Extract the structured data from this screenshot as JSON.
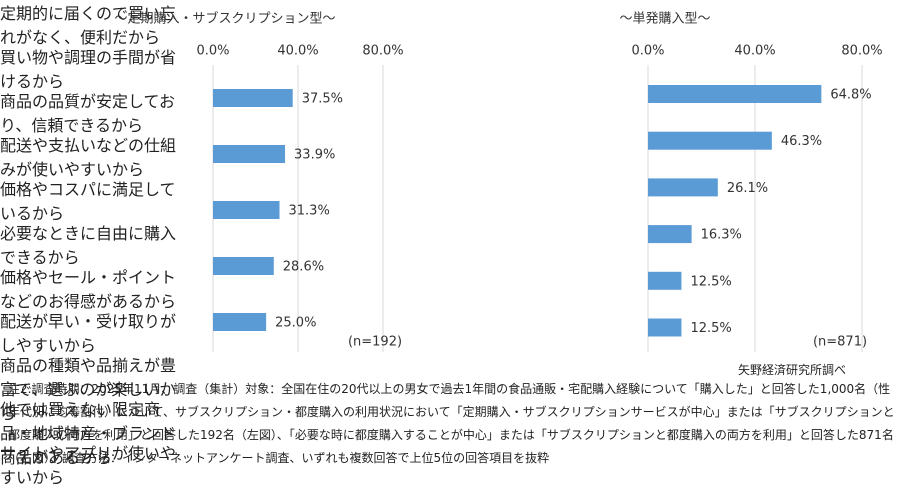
{
  "chart_data": [
    {
      "type": "barh",
      "title": "～定期購入・サブスクリプション型～",
      "categories": [
        "定期的に届くので買い忘れがなく、便利だから",
        "買い物や調理の手間が省けるから",
        "商品の品質が安定しており、信頼できるから",
        "配送や支払いなどの仕組みが使いやすいから",
        "価格やコスパに満足しているから"
      ],
      "values": [
        37.5,
        33.9,
        31.3,
        28.6,
        25.0
      ],
      "value_labels": [
        "37.5%",
        "33.9%",
        "31.3%",
        "28.6%",
        "25.0%"
      ],
      "color": "#5b9bd5",
      "xlim": [
        0,
        80
      ],
      "xticks": [
        {
          "value": 0,
          "label": "0.0%"
        },
        {
          "value": 40,
          "label": "40.0%"
        },
        {
          "value": 80,
          "label": "80.0%"
        }
      ],
      "grid": true,
      "annotation": "(n=192)"
    },
    {
      "type": "barh",
      "title": "～単発購入型～",
      "categories": [
        "必要なときに自由に購入できるから",
        "価格やセール・ポイントなどのお得感があるから",
        "配送が早い・受け取りがしやすいから",
        "商品の種類や品揃えが豊富で、選ぶのが楽しいから",
        "他では買えない限定商品・地域特産・ブランド商品があるから",
        "サイトやアプリが使いやすいから"
      ],
      "values": [
        64.8,
        46.3,
        26.1,
        16.3,
        12.5,
        12.5
      ],
      "value_labels": [
        "64.8%",
        "46.3%",
        "26.1%",
        "16.3%",
        "12.5%",
        "12.5%"
      ],
      "color": "#5b9bd5",
      "xlim": [
        0,
        80
      ],
      "xticks": [
        {
          "value": 0,
          "label": "0.0%"
        },
        {
          "value": 40,
          "label": "40.0%"
        },
        {
          "value": 80,
          "label": "80.0%"
        }
      ],
      "grid": true,
      "annotation": "(n=871)"
    }
  ],
  "source": "矢野経済研究所調べ",
  "note": "注2.調査時期：2025年11月、調査（集計）対象：全国在住の20代以上の男女で過去1年間の食品通販・宅配購入経験について「購入した」と回答した1,000名（性年代別に均等割付）について、サブスクリプション・都度購入の利用状況において「定期購入・サブスクリプションサービスが中心」または「サブスクリプションと都度購入の両方を利用」と回答した192名（左図）、「必要な時に都度購入することが中心」または「サブスクリプションと都度購入の両方を利用」と回答した871名（右図）、調査方法：インターネットアンケート調査、いずれも複数回答で上位5位の回答項目を抜粋"
}
